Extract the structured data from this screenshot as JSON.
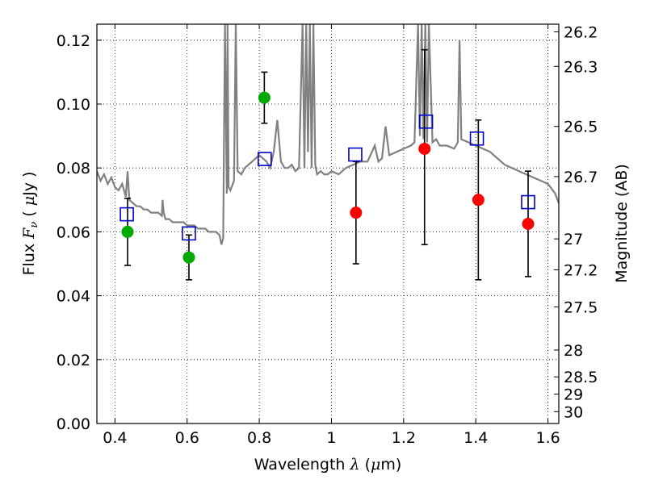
{
  "chart_data": {
    "type": "scatter",
    "xlabel": {
      "pre": "Wavelength  ",
      "sym": "λ",
      "post": " (",
      "mu": "μ",
      "unit": "m)"
    },
    "ylabel": {
      "pre": "Flux  ",
      "sym": "F",
      "sub": "ν",
      "post": "  ( ",
      "mu": "μ",
      "unit": "Jy )"
    },
    "y2label": "Magnitude (AB)",
    "xlim": [
      0.35,
      1.63
    ],
    "ylim": [
      0.0,
      0.125
    ],
    "grid": true,
    "x_ticks": [
      {
        "v": 0.4,
        "label": "0.4"
      },
      {
        "v": 0.6,
        "label": "0.6"
      },
      {
        "v": 0.8,
        "label": "0.8"
      },
      {
        "v": 1.0,
        "label": "1"
      },
      {
        "v": 1.2,
        "label": "1.2"
      },
      {
        "v": 1.4,
        "label": "1.4"
      },
      {
        "v": 1.6,
        "label": "1.6"
      }
    ],
    "y_ticks": [
      {
        "v": 0.0,
        "label": "0.00"
      },
      {
        "v": 0.02,
        "label": "0.02"
      },
      {
        "v": 0.04,
        "label": "0.04"
      },
      {
        "v": 0.06,
        "label": "0.06"
      },
      {
        "v": 0.08,
        "label": "0.08"
      },
      {
        "v": 0.1,
        "label": "0.10"
      },
      {
        "v": 0.12,
        "label": "0.12"
      }
    ],
    "y2_ticks": [
      {
        "flux": 0.1226,
        "label": "26.2"
      },
      {
        "flux": 0.1118,
        "label": "26.3"
      },
      {
        "flux": 0.093,
        "label": "26.5"
      },
      {
        "flux": 0.0773,
        "label": "26.7"
      },
      {
        "flux": 0.0578,
        "label": "27"
      },
      {
        "flux": 0.0481,
        "label": "27.2"
      },
      {
        "flux": 0.0365,
        "label": "27.5"
      },
      {
        "flux": 0.023,
        "label": "28"
      },
      {
        "flux": 0.0146,
        "label": "28.5"
      },
      {
        "flux": 0.0092,
        "label": "29"
      },
      {
        "flux": 0.0037,
        "label": "30"
      }
    ],
    "series": [
      {
        "marker": "circle",
        "color": "#00aa00",
        "points": [
          {
            "x": 0.435,
            "y": 0.06,
            "yerr_low": 0.0495,
            "yerr_high": 0.0705
          },
          {
            "x": 0.605,
            "y": 0.052,
            "yerr_low": 0.045,
            "yerr_high": 0.059
          },
          {
            "x": 0.814,
            "y": 0.102,
            "yerr_low": 0.094,
            "yerr_high": 0.11
          }
        ]
      },
      {
        "marker": "circle",
        "color": "#ff0000",
        "points": [
          {
            "x": 1.068,
            "y": 0.066,
            "yerr_low": 0.05,
            "yerr_high": 0.082
          },
          {
            "x": 1.258,
            "y": 0.086,
            "yerr_low": 0.056,
            "yerr_high": 0.117
          },
          {
            "x": 1.407,
            "y": 0.07,
            "yerr_low": 0.045,
            "yerr_high": 0.095
          },
          {
            "x": 1.545,
            "y": 0.0625,
            "yerr_low": 0.046,
            "yerr_high": 0.079
          }
        ]
      },
      {
        "marker": "open-square",
        "color": "#0000cc",
        "points": [
          {
            "x": 0.433,
            "y": 0.0655
          },
          {
            "x": 0.605,
            "y": 0.0595
          },
          {
            "x": 0.815,
            "y": 0.0828
          },
          {
            "x": 1.066,
            "y": 0.0842
          },
          {
            "x": 1.262,
            "y": 0.0945
          },
          {
            "x": 1.403,
            "y": 0.0892
          },
          {
            "x": 1.545,
            "y": 0.0693
          }
        ]
      },
      {
        "marker": "line",
        "color": "#808080",
        "x": [
          0.35,
          0.36,
          0.37,
          0.38,
          0.39,
          0.4,
          0.41,
          0.42,
          0.43,
          0.435,
          0.44,
          0.45,
          0.46,
          0.47,
          0.48,
          0.49,
          0.5,
          0.51,
          0.52,
          0.53,
          0.532,
          0.535,
          0.54,
          0.55,
          0.56,
          0.57,
          0.58,
          0.59,
          0.6,
          0.61,
          0.62,
          0.63,
          0.64,
          0.65,
          0.66,
          0.67,
          0.68,
          0.69,
          0.695,
          0.7,
          0.705,
          0.71,
          0.712,
          0.715,
          0.72,
          0.73,
          0.735,
          0.74,
          0.75,
          0.76,
          0.77,
          0.78,
          0.79,
          0.8,
          0.81,
          0.82,
          0.83,
          0.84,
          0.85,
          0.86,
          0.87,
          0.88,
          0.89,
          0.9,
          0.91,
          0.92,
          0.925,
          0.93,
          0.935,
          0.94,
          0.945,
          0.95,
          0.955,
          0.96,
          0.97,
          0.98,
          0.99,
          1.0,
          1.02,
          1.04,
          1.06,
          1.08,
          1.1,
          1.12,
          1.13,
          1.14,
          1.15,
          1.16,
          1.18,
          1.2,
          1.22,
          1.23,
          1.24,
          1.245,
          1.25,
          1.255,
          1.26,
          1.265,
          1.27,
          1.28,
          1.29,
          1.3,
          1.32,
          1.34,
          1.35,
          1.355,
          1.36,
          1.38,
          1.4,
          1.42,
          1.44,
          1.46,
          1.48,
          1.5,
          1.52,
          1.54,
          1.56,
          1.58,
          1.6,
          1.62,
          1.63
        ],
        "y": [
          0.079,
          0.076,
          0.078,
          0.075,
          0.077,
          0.074,
          0.073,
          0.075,
          0.071,
          0.079,
          0.07,
          0.069,
          0.068,
          0.068,
          0.067,
          0.067,
          0.066,
          0.066,
          0.066,
          0.065,
          0.07,
          0.066,
          0.064,
          0.064,
          0.063,
          0.063,
          0.063,
          0.063,
          0.062,
          0.062,
          0.062,
          0.061,
          0.061,
          0.061,
          0.06,
          0.06,
          0.06,
          0.059,
          0.056,
          0.058,
          0.125,
          0.072,
          0.125,
          0.074,
          0.073,
          0.076,
          0.125,
          0.079,
          0.078,
          0.08,
          0.081,
          0.082,
          0.083,
          0.084,
          0.083,
          0.082,
          0.08,
          0.085,
          0.095,
          0.082,
          0.08,
          0.08,
          0.081,
          0.079,
          0.08,
          0.125,
          0.08,
          0.125,
          0.085,
          0.125,
          0.08,
          0.125,
          0.081,
          0.078,
          0.079,
          0.078,
          0.078,
          0.079,
          0.078,
          0.08,
          0.081,
          0.082,
          0.082,
          0.087,
          0.082,
          0.083,
          0.093,
          0.084,
          0.085,
          0.086,
          0.087,
          0.088,
          0.125,
          0.09,
          0.125,
          0.089,
          0.125,
          0.088,
          0.125,
          0.088,
          0.089,
          0.087,
          0.087,
          0.086,
          0.088,
          0.12,
          0.089,
          0.088,
          0.087,
          0.086,
          0.085,
          0.083,
          0.081,
          0.08,
          0.079,
          0.078,
          0.077,
          0.076,
          0.075,
          0.072,
          0.069
        ]
      }
    ]
  }
}
